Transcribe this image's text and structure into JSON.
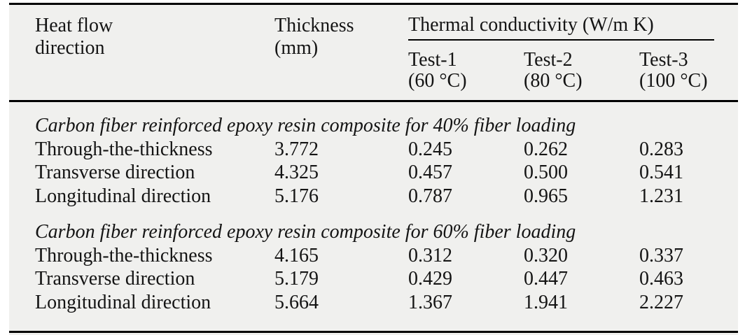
{
  "table": {
    "header": {
      "col_heat_flow": "Heat flow direction",
      "col_thickness": "Thickness (mm)",
      "col_group": "Thermal conductivity (W/m K)",
      "subcols": [
        {
          "name": "Test-1",
          "temp": "(60 °C)"
        },
        {
          "name": "Test-2",
          "temp": "(80 °C)"
        },
        {
          "name": "Test-3",
          "temp": "(100 °C)"
        }
      ]
    },
    "sections": [
      {
        "title": "Carbon fiber reinforced epoxy resin composite for 40% fiber loading",
        "rows": [
          {
            "direction": "Through-the-thickness",
            "thickness": "3.772",
            "test1": "0.245",
            "test2": "0.262",
            "test3": "0.283"
          },
          {
            "direction": "Transverse direction",
            "thickness": "4.325",
            "test1": "0.457",
            "test2": "0.500",
            "test3": "0.541"
          },
          {
            "direction": "Longitudinal direction",
            "thickness": "5.176",
            "test1": "0.787",
            "test2": "0.965",
            "test3": "1.231"
          }
        ]
      },
      {
        "title": "Carbon fiber reinforced epoxy resin composite for 60% fiber loading",
        "rows": [
          {
            "direction": "Through-the-thickness",
            "thickness": "4.165",
            "test1": "0.312",
            "test2": "0.320",
            "test3": "0.337"
          },
          {
            "direction": "Transverse direction",
            "thickness": "5.179",
            "test1": "0.429",
            "test2": "0.447",
            "test3": "0.463"
          },
          {
            "direction": "Longitudinal direction",
            "thickness": "5.664",
            "test1": "1.367",
            "test2": "1.941",
            "test3": "2.227"
          }
        ]
      }
    ]
  },
  "colors": {
    "table_background": "#f0f0ee",
    "rule": "#000000",
    "text": "#141414"
  }
}
